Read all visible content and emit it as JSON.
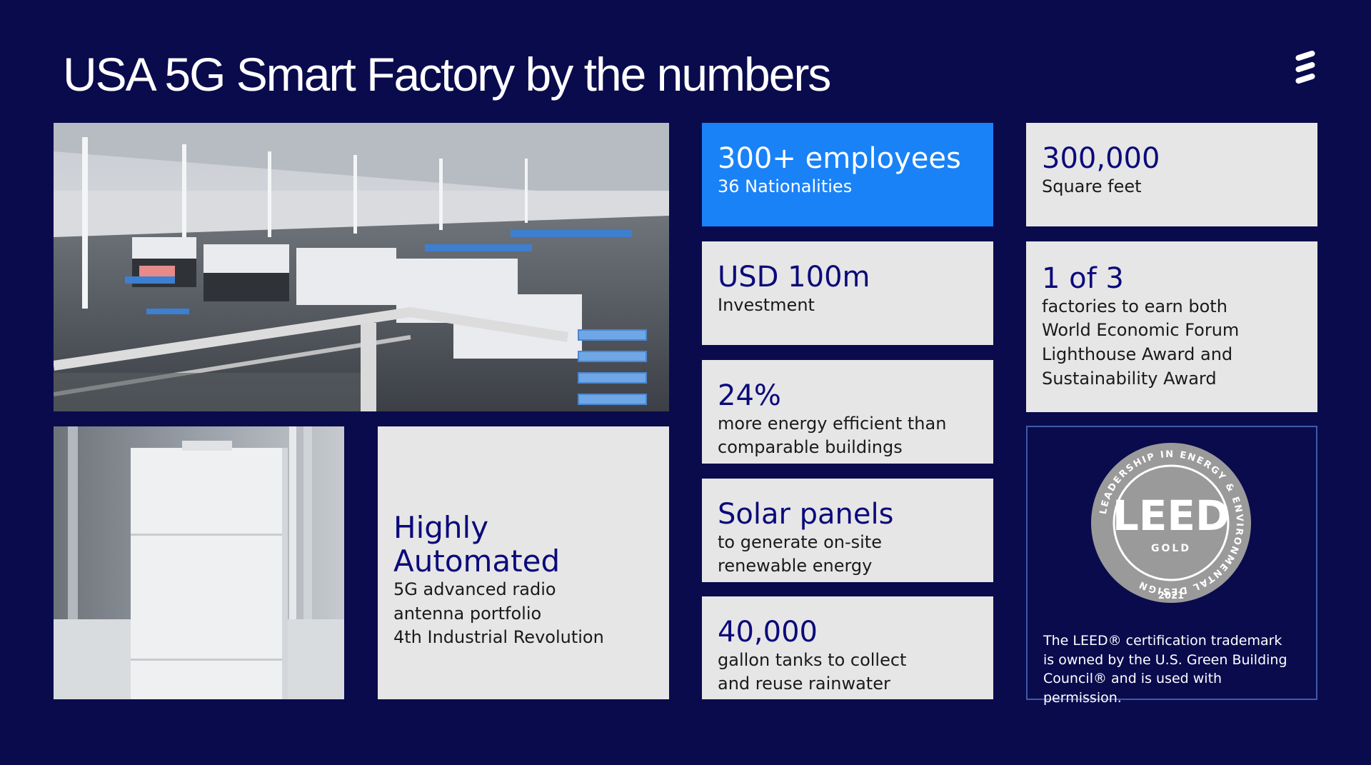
{
  "header": {
    "title": "USA 5G Smart Factory by the numbers",
    "logo_icon": "ericsson-logo-icon"
  },
  "photos": {
    "factory_floor_icon": "factory-floor-photo",
    "antenna_icon": "antenna-unit-photo"
  },
  "automated": {
    "heading": "Highly Automated",
    "lines": [
      "5G advanced radio",
      "antenna portfolio",
      "4th Industrial Revolution"
    ]
  },
  "stats": [
    {
      "value": "300+ employees",
      "lines": [
        "36 Nationalities"
      ]
    },
    {
      "value": "USD 100m",
      "lines": [
        "Investment"
      ]
    },
    {
      "value": "24%",
      "lines": [
        "more energy efficient than",
        "comparable buildings"
      ]
    },
    {
      "value": "Solar panels",
      "lines": [
        "to generate on-site",
        "renewable energy"
      ]
    },
    {
      "value": "40,000",
      "lines": [
        "gallon tanks to collect",
        "and reuse rainwater"
      ]
    }
  ],
  "right_stats": [
    {
      "value": "300,000",
      "lines": [
        "Square feet"
      ]
    },
    {
      "value": "1 of 3",
      "lines": [
        "factories to earn both",
        "World Economic Forum",
        "Lighthouse Award and",
        "Sustainability Award"
      ]
    }
  ],
  "leed": {
    "badge_icon": "leed-gold-badge-icon",
    "ring_text": "LEADERSHIP IN ENERGY & ENVIRONMENTAL DESIGN",
    "mark": "LEED",
    "level": "GOLD",
    "year": "2021",
    "note": "The LEED® certification trademark is owned by the U.S. Green Building Council® and is used with permission."
  },
  "colors": {
    "background": "#0a0b4d",
    "highlight_card": "#1a82f7",
    "card": "#e6e6e6",
    "stat_text": "#0b0a7a"
  }
}
